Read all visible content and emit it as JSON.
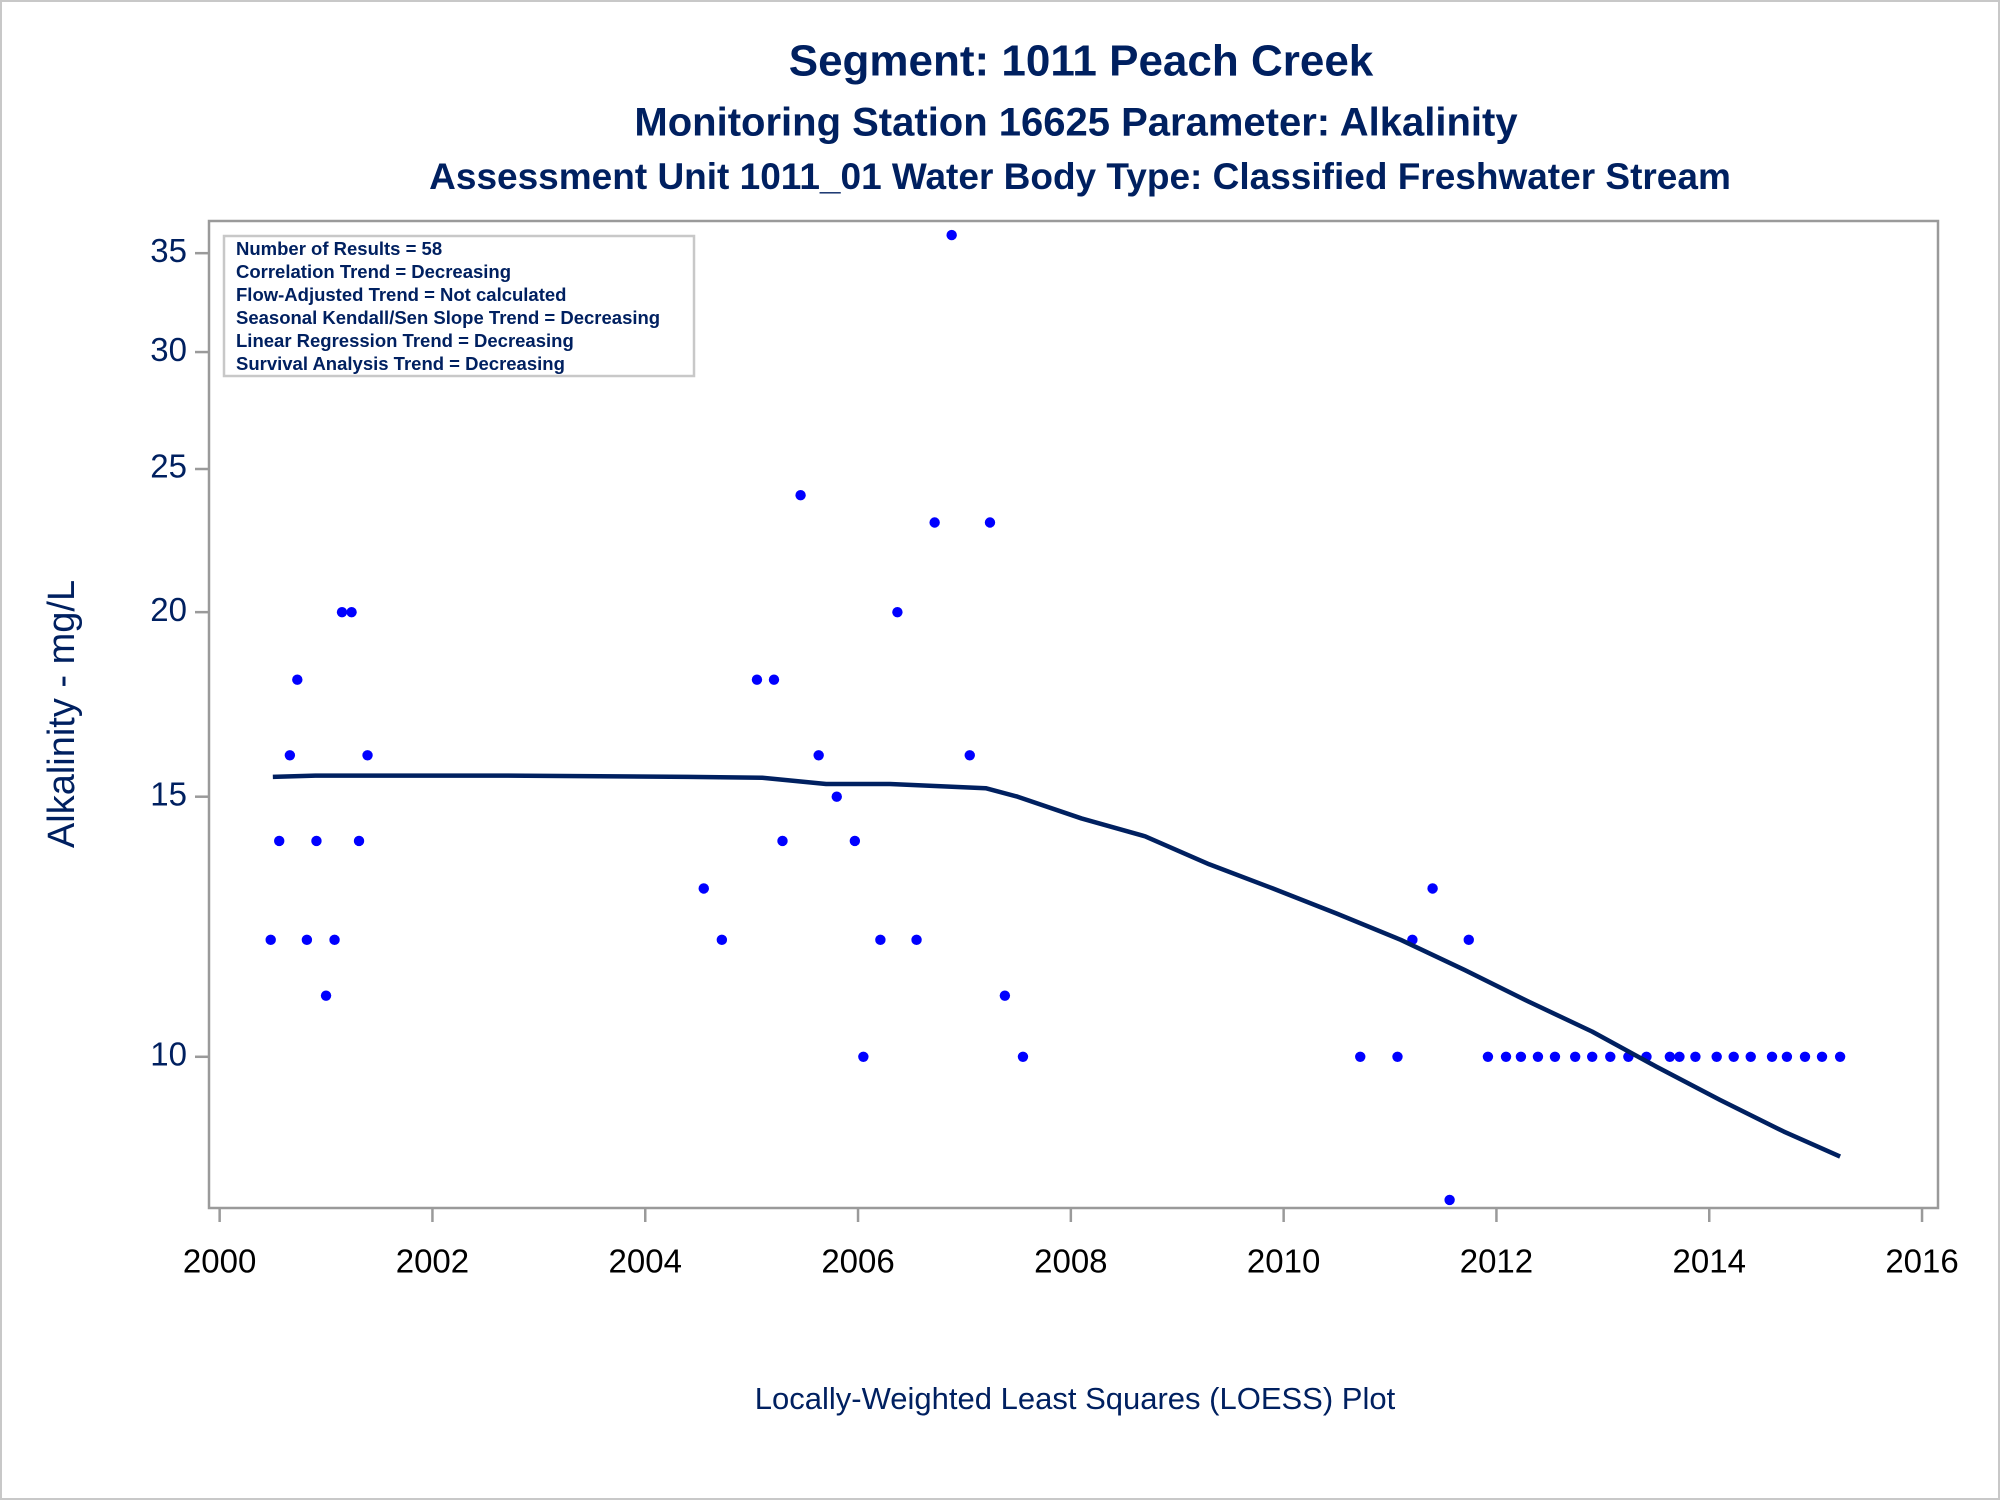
{
  "chart_data": {
    "type": "scatter",
    "title": "Segment: 1011  Peach Creek",
    "subtitles": [
      "Monitoring Station 16625 Parameter: Alkalinity",
      "Assessment Unit 1011_01   Water Body Type: Classified Freshwater Stream"
    ],
    "x_label": "Locally-Weighted Least Squares (LOESS) Plot",
    "y_label": "Alkalinity - mg/L",
    "annotations": [
      "Number of Results = 58",
      "Correlation Trend = Decreasing",
      "Flow-Adjusted Trend = Not calculated",
      "Seasonal Kendall/Sen Slope Trend = Decreasing",
      "Linear Regression Trend = Decreasing",
      "Survival Analysis Trend = Decreasing"
    ],
    "xlim": [
      1999.9,
      2016.15
    ],
    "xticks": [
      2000,
      2002,
      2004,
      2006,
      2008,
      2010,
      2012,
      2014,
      2016
    ],
    "ylim": [
      7.9,
      36.8
    ],
    "yticks": [
      10,
      15,
      20,
      25,
      30,
      35
    ],
    "yscale": "log",
    "series": [
      {
        "type": "scatter",
        "color": "#0000ff",
        "x": [
          2000.48,
          2000.56,
          2000.66,
          2000.73,
          2000.82,
          2000.91,
          2001.0,
          2001.08,
          2001.15,
          2001.24,
          2001.31,
          2001.39,
          2004.55,
          2004.72,
          2005.05,
          2005.21,
          2005.29,
          2005.46,
          2005.63,
          2005.8,
          2005.97,
          2006.05,
          2006.21,
          2006.37,
          2006.55,
          2006.72,
          2006.88,
          2007.05,
          2007.24,
          2007.38,
          2007.55,
          2010.72,
          2011.07,
          2011.21,
          2011.4,
          2011.56,
          2011.74,
          2011.92,
          2012.09,
          2012.23,
          2012.39,
          2012.55,
          2012.74,
          2012.9,
          2013.07,
          2013.24,
          2013.41,
          2013.63,
          2013.72,
          2013.87,
          2014.07,
          2014.23,
          2014.39,
          2014.59,
          2014.73,
          2014.9,
          2015.06,
          2015.23
        ],
        "values": [
          12,
          14,
          16,
          18,
          12,
          14,
          11,
          12,
          20,
          20,
          14,
          16,
          13,
          12,
          18,
          18,
          14,
          24,
          16,
          15,
          14,
          10,
          12,
          20,
          12,
          23,
          36,
          16,
          23,
          11,
          10,
          10,
          10,
          12,
          13,
          8,
          12,
          10,
          10,
          10,
          10,
          10,
          10,
          10,
          10,
          10,
          10,
          10,
          10,
          10,
          10,
          10,
          10,
          10,
          10,
          10,
          10,
          10
        ]
      },
      {
        "type": "line",
        "color": "#002060",
        "x": [
          2000.5,
          2000.9,
          2002.7,
          2004.4,
          2005.1,
          2005.7,
          2006.3,
          2007.2,
          2007.5,
          2008.1,
          2008.7,
          2009.3,
          2009.9,
          2010.5,
          2011.1,
          2011.7,
          2012.3,
          2012.9,
          2013.5,
          2014.1,
          2014.7,
          2015.23
        ],
        "values": [
          15.47,
          15.5,
          15.5,
          15.47,
          15.45,
          15.3,
          15.3,
          15.2,
          15.0,
          14.5,
          14.1,
          13.5,
          13.0,
          12.5,
          12.0,
          11.45,
          10.9,
          10.4,
          9.85,
          9.35,
          8.9,
          8.56
        ]
      }
    ]
  }
}
